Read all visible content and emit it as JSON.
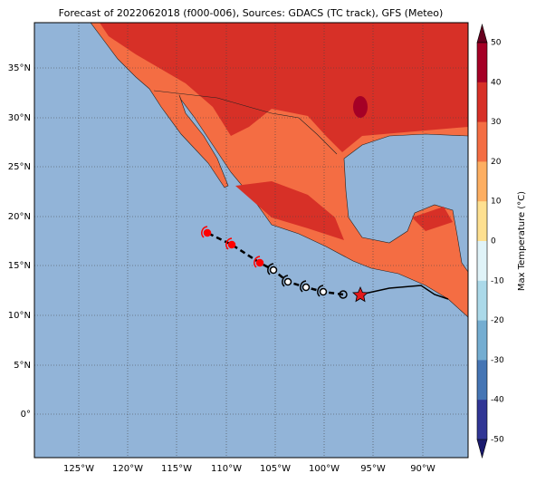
{
  "title": "Forecast of 2022062018 (f000-006), Sources: GDACS (TC track), GFS (Meteo)",
  "map": {
    "lat_labels": [
      "35°N",
      "30°N",
      "25°N",
      "20°N",
      "15°N",
      "10°N",
      "5°N",
      "0°"
    ],
    "lon_labels": [
      "125°W",
      "120°W",
      "115°W",
      "110°W",
      "105°W",
      "100°W",
      "95°W",
      "90°W"
    ]
  },
  "colorbar": {
    "label": "Max Temperature (°C)",
    "tick_labels": [
      50,
      40,
      30,
      20,
      10,
      0,
      -10,
      -20,
      -30,
      -40,
      -50
    ]
  }
}
